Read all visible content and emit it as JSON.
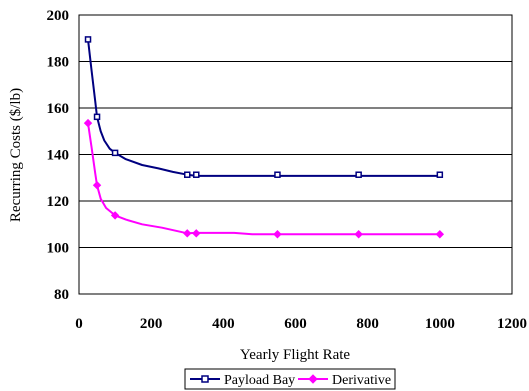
{
  "chart_data": {
    "type": "line",
    "title": "",
    "xlabel": "Yearly Flight Rate",
    "ylabel": "Recurring Costs ($/lb)",
    "xlim": [
      0,
      1200
    ],
    "ylim": [
      80,
      200
    ],
    "xticks": [
      0,
      200,
      400,
      600,
      800,
      1000,
      1200
    ],
    "yticks": [
      80,
      100,
      120,
      140,
      160,
      180,
      200
    ],
    "grid": "horizontal",
    "legend_position": "bottom-center",
    "series": [
      {
        "name": "Payload Bay",
        "color": "#000080",
        "marker": "square",
        "markers": [
          {
            "x": 25,
            "y": 189.5
          },
          {
            "x": 50,
            "y": 156.2
          },
          {
            "x": 100,
            "y": 140.7
          },
          {
            "x": 300,
            "y": 131.3
          },
          {
            "x": 325,
            "y": 131.3
          },
          {
            "x": 550,
            "y": 131.3
          },
          {
            "x": 775,
            "y": 131.3
          },
          {
            "x": 1000,
            "y": 131.3
          }
        ],
        "curve": [
          {
            "x": 25,
            "y": 189.5
          },
          {
            "x": 35,
            "y": 176
          },
          {
            "x": 45,
            "y": 163
          },
          {
            "x": 50,
            "y": 156.2
          },
          {
            "x": 60,
            "y": 150
          },
          {
            "x": 70,
            "y": 146
          },
          {
            "x": 85,
            "y": 142.5
          },
          {
            "x": 100,
            "y": 140.7
          },
          {
            "x": 130,
            "y": 138
          },
          {
            "x": 175,
            "y": 135.5
          },
          {
            "x": 220,
            "y": 134
          },
          {
            "x": 260,
            "y": 132.5
          },
          {
            "x": 300,
            "y": 131.3
          },
          {
            "x": 325,
            "y": 130.8
          },
          {
            "x": 550,
            "y": 130.8
          },
          {
            "x": 775,
            "y": 130.8
          },
          {
            "x": 1000,
            "y": 130.8
          }
        ]
      },
      {
        "name": "Derivative",
        "color": "#ff00ff",
        "marker": "diamond",
        "markers": [
          {
            "x": 25,
            "y": 153.5
          },
          {
            "x": 50,
            "y": 126.8
          },
          {
            "x": 100,
            "y": 113.8
          },
          {
            "x": 300,
            "y": 106.1
          },
          {
            "x": 325,
            "y": 106.1
          },
          {
            "x": 550,
            "y": 105.7
          },
          {
            "x": 775,
            "y": 105.7
          },
          {
            "x": 1000,
            "y": 105.7
          }
        ],
        "curve": [
          {
            "x": 25,
            "y": 153.5
          },
          {
            "x": 35,
            "y": 143
          },
          {
            "x": 45,
            "y": 132
          },
          {
            "x": 50,
            "y": 126.8
          },
          {
            "x": 60,
            "y": 121
          },
          {
            "x": 75,
            "y": 117
          },
          {
            "x": 100,
            "y": 113.8
          },
          {
            "x": 130,
            "y": 112
          },
          {
            "x": 175,
            "y": 110
          },
          {
            "x": 230,
            "y": 108.5
          },
          {
            "x": 300,
            "y": 106.1
          },
          {
            "x": 325,
            "y": 106.3
          },
          {
            "x": 430,
            "y": 106.3
          },
          {
            "x": 480,
            "y": 105.7
          },
          {
            "x": 550,
            "y": 105.7
          },
          {
            "x": 775,
            "y": 105.7
          },
          {
            "x": 1000,
            "y": 105.7
          }
        ]
      }
    ]
  }
}
